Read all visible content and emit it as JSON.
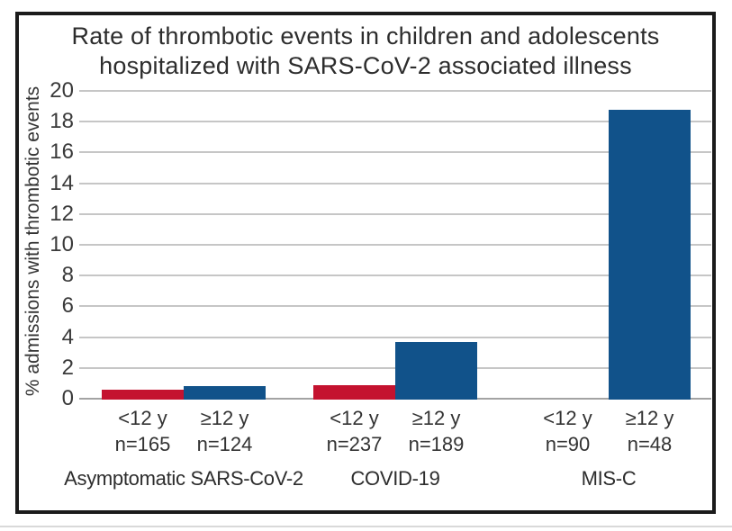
{
  "chart_data": {
    "type": "bar",
    "title_lines": [
      "Rate of thrombotic events in children and adolescents",
      "hospitalized with SARS-CoV-2 associated illness"
    ],
    "ylabel": "% admissions with thrombotic events",
    "ylim": [
      0,
      20
    ],
    "yticks": [
      0,
      2,
      4,
      6,
      8,
      10,
      12,
      14,
      16,
      18,
      20
    ],
    "grid": true,
    "legend": "none",
    "bar_colors": {
      "under_12y": "#c4122f",
      "over_12y": "#11528a"
    },
    "groups": [
      {
        "label": "Asymptomatic SARS-CoV-2",
        "bars": [
          {
            "age": "<12 y",
            "n": "n=165",
            "value": 0.6
          },
          {
            "age": "≥12 y",
            "n": "n=124",
            "value": 0.8
          }
        ]
      },
      {
        "label": "COVID-19",
        "bars": [
          {
            "age": "<12 y",
            "n": "n=237",
            "value": 0.9
          },
          {
            "age": "≥12 y",
            "n": "n=189",
            "value": 3.7
          }
        ]
      },
      {
        "label": "MIS-C",
        "bars": [
          {
            "age": "<12 y",
            "n": "n=90",
            "value": 0
          },
          {
            "age": "≥12 y",
            "n": "n=48",
            "value": 18.8
          }
        ]
      }
    ]
  }
}
